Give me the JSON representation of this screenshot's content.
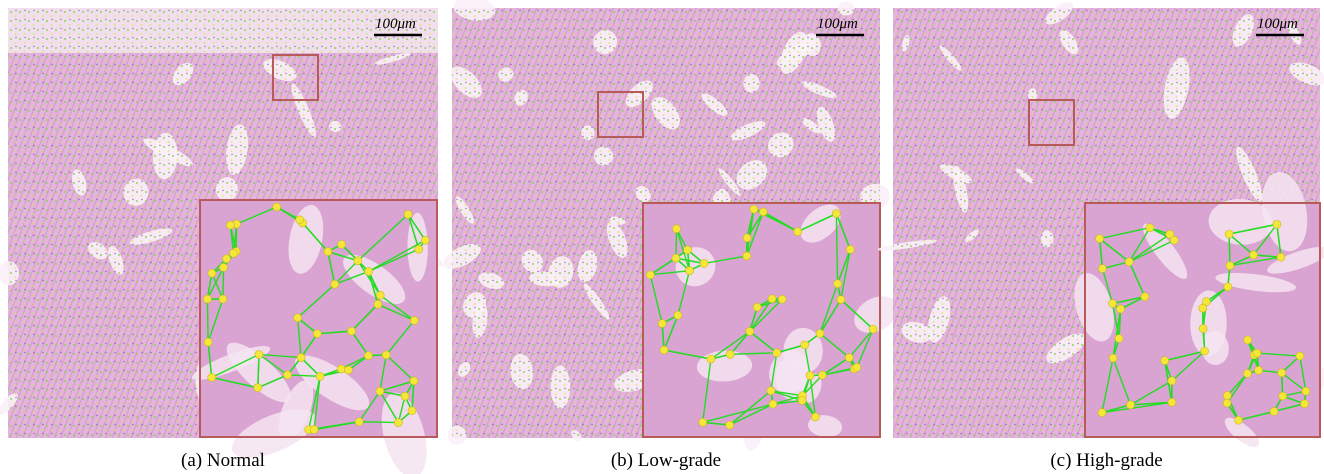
{
  "panels": [
    {
      "scale_bar": "100μm",
      "caption": "(a) Normal"
    },
    {
      "scale_bar": "100μm",
      "caption": "(b) Low-grade"
    },
    {
      "scale_bar": "100μm",
      "caption": "(c) High-grade"
    }
  ]
}
